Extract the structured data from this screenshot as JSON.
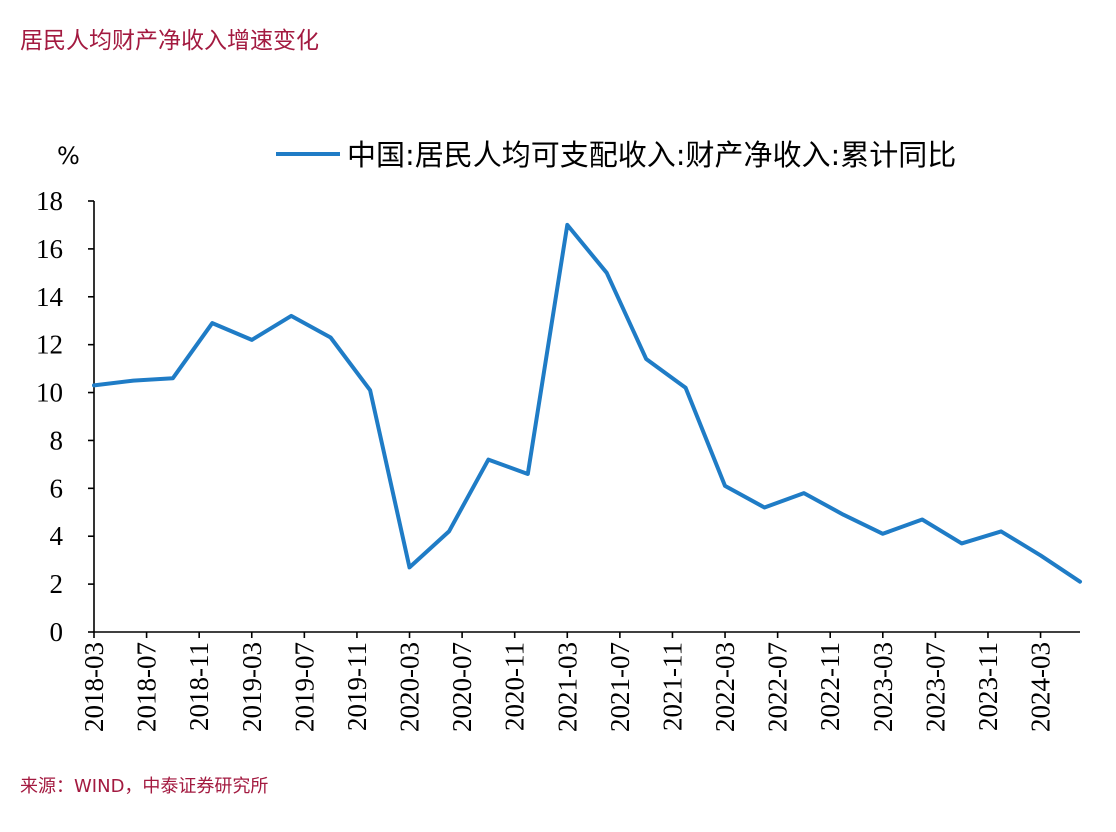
{
  "title": "居民人均财产净收入增速变化",
  "source": "来源：WIND，中泰证券研究所",
  "colors": {
    "title": "#a31a40",
    "source": "#a31a40",
    "axis": "#000000",
    "line": "#1f7cc6"
  },
  "chart_data": {
    "type": "line",
    "title": "",
    "xlabel": "",
    "ylabel": "%",
    "ylim": [
      0,
      18
    ],
    "yticks": [
      0,
      2,
      4,
      6,
      8,
      10,
      12,
      14,
      16,
      18
    ],
    "xlim": [
      "2018-03",
      "2024-06"
    ],
    "xticks": [
      "2018-03",
      "2018-07",
      "2018-11",
      "2019-03",
      "2019-07",
      "2019-11",
      "2020-03",
      "2020-07",
      "2020-11",
      "2021-03",
      "2021-07",
      "2021-11",
      "2022-03",
      "2022-07",
      "2022-11",
      "2023-03",
      "2023-07",
      "2023-11",
      "2024-03"
    ],
    "grid": false,
    "legend": "top",
    "series": [
      {
        "name": "中国:居民人均可支配收入:财产净收入:累计同比",
        "color": "#1f7cc6",
        "x": [
          "2018-03",
          "2018-06",
          "2018-09",
          "2018-12",
          "2019-03",
          "2019-06",
          "2019-09",
          "2019-12",
          "2020-03",
          "2020-06",
          "2020-09",
          "2020-12",
          "2021-03",
          "2021-06",
          "2021-09",
          "2021-12",
          "2022-03",
          "2022-06",
          "2022-09",
          "2022-12",
          "2023-03",
          "2023-06",
          "2023-09",
          "2023-12",
          "2024-03",
          "2024-06"
        ],
        "y": [
          10.3,
          10.5,
          10.6,
          12.9,
          12.2,
          13.2,
          12.3,
          10.1,
          2.7,
          4.2,
          7.2,
          6.6,
          17.0,
          15.0,
          11.4,
          10.2,
          6.1,
          5.2,
          5.8,
          4.9,
          4.1,
          4.7,
          3.7,
          4.2,
          3.2,
          2.1
        ]
      }
    ]
  }
}
